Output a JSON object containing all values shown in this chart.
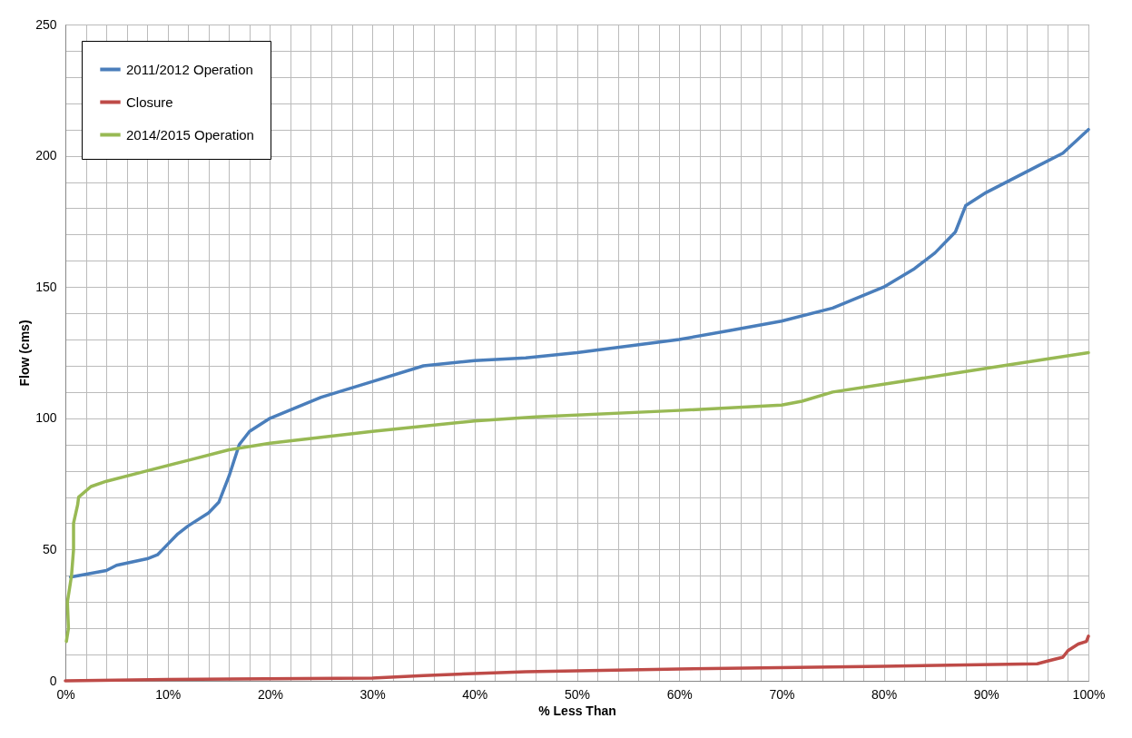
{
  "chart_data": {
    "type": "line",
    "xlabel": "% Less Than",
    "ylabel": "Flow (cms)",
    "legend": "top left",
    "grid": true,
    "line_style": "solid",
    "marker": "none",
    "xlim": [
      0,
      100
    ],
    "ylim": [
      0,
      250
    ],
    "xticks": [
      {
        "value": 0,
        "label": "0%"
      },
      {
        "value": 2,
        "label": null
      },
      {
        "value": 4,
        "label": null
      },
      {
        "value": 6,
        "label": null
      },
      {
        "value": 8,
        "label": null
      },
      {
        "value": 10,
        "label": "10%"
      },
      {
        "value": 12,
        "label": null
      },
      {
        "value": 14,
        "label": null
      },
      {
        "value": 16,
        "label": null
      },
      {
        "value": 18,
        "label": null
      },
      {
        "value": 20,
        "label": "20%"
      },
      {
        "value": 22,
        "label": null
      },
      {
        "value": 24,
        "label": null
      },
      {
        "value": 26,
        "label": null
      },
      {
        "value": 28,
        "label": null
      },
      {
        "value": 30,
        "label": "30%"
      },
      {
        "value": 32,
        "label": null
      },
      {
        "value": 34,
        "label": null
      },
      {
        "value": 36,
        "label": null
      },
      {
        "value": 38,
        "label": null
      },
      {
        "value": 40,
        "label": "40%"
      },
      {
        "value": 42,
        "label": null
      },
      {
        "value": 44,
        "label": null
      },
      {
        "value": 46,
        "label": null
      },
      {
        "value": 48,
        "label": null
      },
      {
        "value": 50,
        "label": "50%"
      },
      {
        "value": 52,
        "label": null
      },
      {
        "value": 54,
        "label": null
      },
      {
        "value": 56,
        "label": null
      },
      {
        "value": 58,
        "label": null
      },
      {
        "value": 60,
        "label": "60%"
      },
      {
        "value": 62,
        "label": null
      },
      {
        "value": 64,
        "label": null
      },
      {
        "value": 66,
        "label": null
      },
      {
        "value": 68,
        "label": null
      },
      {
        "value": 70,
        "label": "70%"
      },
      {
        "value": 72,
        "label": null
      },
      {
        "value": 74,
        "label": null
      },
      {
        "value": 76,
        "label": null
      },
      {
        "value": 78,
        "label": null
      },
      {
        "value": 80,
        "label": "80%"
      },
      {
        "value": 82,
        "label": null
      },
      {
        "value": 84,
        "label": null
      },
      {
        "value": 86,
        "label": null
      },
      {
        "value": 88,
        "label": null
      },
      {
        "value": 90,
        "label": "90%"
      },
      {
        "value": 92,
        "label": null
      },
      {
        "value": 94,
        "label": null
      },
      {
        "value": 96,
        "label": null
      },
      {
        "value": 98,
        "label": null
      },
      {
        "value": 100,
        "label": "100%"
      }
    ],
    "yticks": [
      0,
      {
        "value": 10,
        "label": null
      },
      {
        "value": 20,
        "label": null
      },
      {
        "value": 30,
        "label": null
      },
      {
        "value": 40,
        "label": null
      },
      50,
      {
        "value": 60,
        "label": null
      },
      {
        "value": 70,
        "label": null
      },
      {
        "value": 80,
        "label": null
      },
      {
        "value": 90,
        "label": null
      },
      100,
      {
        "value": 110,
        "label": null
      },
      {
        "value": 120,
        "label": null
      },
      {
        "value": 130,
        "label": null
      },
      {
        "value": 140,
        "label": null
      },
      150,
      {
        "value": 160,
        "label": null
      },
      {
        "value": 170,
        "label": null
      },
      {
        "value": 180,
        "label": null
      },
      {
        "value": 190,
        "label": null
      },
      200,
      {
        "value": 210,
        "label": null
      },
      {
        "value": 220,
        "label": null
      },
      {
        "value": 230,
        "label": null
      },
      {
        "value": 240,
        "label": null
      },
      250
    ],
    "series": [
      {
        "name": "2011/2012 Operation",
        "color": "#4a7ebb",
        "x": [
          0.5,
          4,
          5,
          8,
          9,
          10,
          11,
          12,
          14,
          15,
          16,
          17,
          18,
          20,
          25,
          30,
          35,
          40,
          45,
          50,
          55,
          60,
          65,
          70,
          75,
          80,
          83,
          85,
          87,
          87.5,
          88,
          90,
          95,
          97.5,
          100
        ],
        "values": [
          39.5,
          42,
          44,
          46.5,
          48,
          52,
          56,
          59,
          64,
          68,
          78,
          90,
          95,
          100,
          108,
          114,
          120,
          122,
          123,
          125,
          127.5,
          130,
          133.5,
          137,
          142,
          150,
          157,
          163,
          171,
          176,
          181,
          186,
          196,
          201,
          210
        ]
      },
      {
        "name": "Closure",
        "color": "#be4b48",
        "x": [
          0,
          10,
          30,
          35,
          45,
          60,
          80,
          95,
          96,
          97.5,
          98,
          99,
          99.8,
          100
        ],
        "values": [
          0,
          0.5,
          1,
          2,
          3.5,
          4.5,
          5.5,
          6.5,
          7.5,
          9,
          11.5,
          14,
          15,
          17
        ]
      },
      {
        "name": "2014/2015 Operation",
        "color": "#98b954",
        "x": [
          0.1,
          0.3,
          0.2,
          0.6,
          0.8,
          0.8,
          1.2,
          1.3,
          2.5,
          4,
          8,
          12,
          16,
          20,
          30,
          40,
          46,
          60,
          70,
          72,
          75,
          80,
          90,
          100
        ],
        "values": [
          15,
          20,
          30,
          40,
          50,
          60,
          67,
          70,
          74,
          76,
          80,
          84,
          88,
          90.5,
          95,
          99,
          100.5,
          103,
          105,
          106.5,
          110,
          113,
          119,
          125
        ]
      }
    ]
  }
}
